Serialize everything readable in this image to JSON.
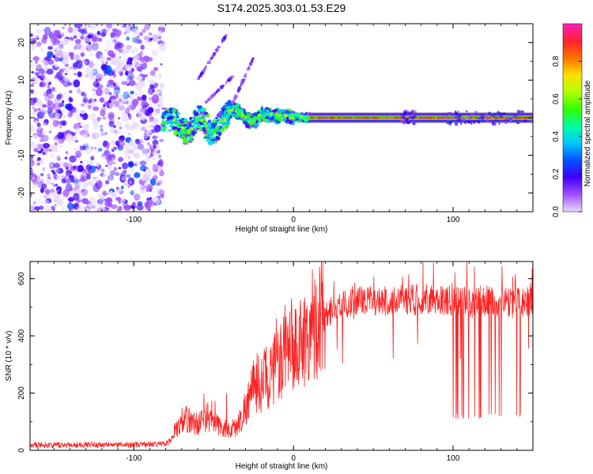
{
  "figure": {
    "title": "S174.2025.303.01.53.E29"
  },
  "chart_data": [
    {
      "type": "heatmap",
      "title": "",
      "xlabel": "Height of straight line (km)",
      "ylabel": "Frequency (Hz)",
      "xlim": [
        -165,
        150
      ],
      "ylim": [
        -25,
        25
      ],
      "x_ticks": [
        -100,
        0,
        100
      ],
      "y_ticks": [
        -20,
        -10,
        0,
        10,
        20
      ],
      "colorbar": {
        "label": "Normalized spectral amplitude",
        "ticks": [
          0.0,
          0.2,
          0.4,
          0.6,
          0.8
        ],
        "range": [
          0,
          1
        ],
        "colormap": [
          "#e8dcff",
          "#a050ff",
          "#4000ff",
          "#0050ff",
          "#00c8ff",
          "#00ffa0",
          "#30ff00",
          "#b0ff00",
          "#ffe000",
          "#ff7000",
          "#ff2030",
          "#ff20c0"
        ]
      },
      "features": {
        "noise_region_x": [
          -165,
          -82
        ],
        "carrier_start_x": 10,
        "carrier_end_x": 150,
        "carrier_frequency": 0.0
      }
    },
    {
      "type": "line",
      "title": "",
      "xlabel": "Height of straight line (km)",
      "ylabel": "SNR (10 * v/v)",
      "xlim": [
        -165,
        150
      ],
      "ylim": [
        0,
        660
      ],
      "x_ticks": [
        -100,
        0,
        100
      ],
      "y_ticks": [
        0,
        200,
        400,
        600
      ],
      "series": [
        {
          "name": "SNR",
          "color": "#ff2020",
          "x": [
            -165,
            -150,
            -130,
            -110,
            -90,
            -80,
            -75,
            -72,
            -68,
            -65,
            -60,
            -55,
            -50,
            -45,
            -40,
            -35,
            -30,
            -25,
            -20,
            -15,
            -10,
            -5,
            0,
            5,
            10,
            15,
            20,
            25,
            30,
            40,
            50,
            60,
            70,
            80,
            90,
            100,
            110,
            120,
            130,
            140,
            150
          ],
          "values": [
            20,
            18,
            20,
            19,
            21,
            22,
            45,
            95,
            110,
            105,
            90,
            115,
            95,
            80,
            70,
            85,
            150,
            220,
            240,
            260,
            300,
            330,
            350,
            380,
            410,
            450,
            480,
            500,
            510,
            515,
            520,
            525,
            520,
            530,
            525,
            520,
            515,
            525,
            520,
            515,
            520
          ]
        }
      ],
      "dropouts": {
        "x_range": [
          98,
          145
        ],
        "floor_value": 110
      }
    }
  ]
}
